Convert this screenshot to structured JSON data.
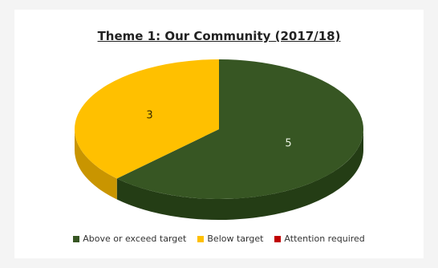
{
  "chart_data": {
    "type": "pie",
    "title": "Theme 1: Our Community (2017/18)",
    "categories": [
      "Above or exceed target",
      "Below target",
      "Attention required"
    ],
    "values": [
      5,
      3,
      0
    ],
    "colors": [
      "#375623",
      "#ffc000",
      "#c00000"
    ],
    "side_colors": [
      "#243d15",
      "#c99500",
      "#8a0000"
    ],
    "data_labels": [
      "5",
      "3",
      ""
    ],
    "style": "3d",
    "legend": "bottom"
  }
}
